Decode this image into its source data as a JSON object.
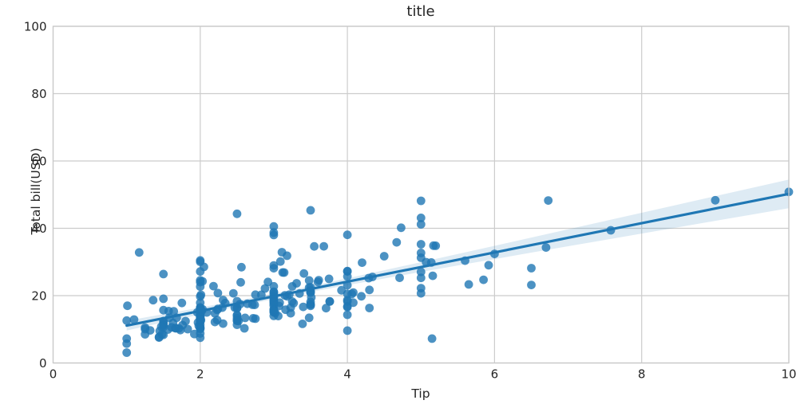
{
  "chart_data": {
    "type": "scatter",
    "title": "title",
    "xlabel": "Tip",
    "ylabel": "Total bill(USD)",
    "xlim": [
      0,
      10
    ],
    "ylim": [
      0,
      100
    ],
    "xticks": [
      0,
      2,
      4,
      6,
      8,
      10
    ],
    "yticks": [
      0,
      20,
      40,
      60,
      80,
      100
    ],
    "grid": true,
    "legend": false,
    "marker_alpha": 0.8,
    "band_alpha": 0.15,
    "colors": {
      "marker": "#1f77b4",
      "line": "#1f77b4",
      "band": "#1f77b4",
      "grid": "#cccccc",
      "spine": "#c9c9c9",
      "text": "#262626"
    },
    "points": [
      [
        1.01,
        16.99
      ],
      [
        1.66,
        10.34
      ],
      [
        3.5,
        21.01
      ],
      [
        3.31,
        23.68
      ],
      [
        3.61,
        24.59
      ],
      [
        4.71,
        25.29
      ],
      [
        2.0,
        8.77
      ],
      [
        3.12,
        26.88
      ],
      [
        1.96,
        15.04
      ],
      [
        3.23,
        14.78
      ],
      [
        1.71,
        10.27
      ],
      [
        5.0,
        35.26
      ],
      [
        1.57,
        15.42
      ],
      [
        3.0,
        18.43
      ],
      [
        3.02,
        14.83
      ],
      [
        3.92,
        21.58
      ],
      [
        1.67,
        10.33
      ],
      [
        3.71,
        16.29
      ],
      [
        3.5,
        16.97
      ],
      [
        3.35,
        20.65
      ],
      [
        4.08,
        17.92
      ],
      [
        2.75,
        20.29
      ],
      [
        2.23,
        15.77
      ],
      [
        7.58,
        39.42
      ],
      [
        3.18,
        19.82
      ],
      [
        2.34,
        17.81
      ],
      [
        2.0,
        13.37
      ],
      [
        2.0,
        12.69
      ],
      [
        4.3,
        21.7
      ],
      [
        3.0,
        19.65
      ],
      [
        1.45,
        9.55
      ],
      [
        2.5,
        18.35
      ],
      [
        3.0,
        15.06
      ],
      [
        2.45,
        20.69
      ],
      [
        3.27,
        17.78
      ],
      [
        3.6,
        24.06
      ],
      [
        2.0,
        16.31
      ],
      [
        3.07,
        16.93
      ],
      [
        2.31,
        18.69
      ],
      [
        5.0,
        31.27
      ],
      [
        2.24,
        16.04
      ],
      [
        2.54,
        17.46
      ],
      [
        3.06,
        13.94
      ],
      [
        1.32,
        9.68
      ],
      [
        5.6,
        30.4
      ],
      [
        3.0,
        18.29
      ],
      [
        5.0,
        22.23
      ],
      [
        6.0,
        32.4
      ],
      [
        2.05,
        28.55
      ],
      [
        3.0,
        18.04
      ],
      [
        2.5,
        12.54
      ],
      [
        2.6,
        10.29
      ],
      [
        5.2,
        34.81
      ],
      [
        1.56,
        9.94
      ],
      [
        4.34,
        25.56
      ],
      [
        3.51,
        19.49
      ],
      [
        3.0,
        38.01
      ],
      [
        1.5,
        26.41
      ],
      [
        1.76,
        11.24
      ],
      [
        6.73,
        48.27
      ],
      [
        3.21,
        20.29
      ],
      [
        2.0,
        13.81
      ],
      [
        1.98,
        11.02
      ],
      [
        3.76,
        18.29
      ],
      [
        2.64,
        17.59
      ],
      [
        3.15,
        20.08
      ],
      [
        2.47,
        16.45
      ],
      [
        1.0,
        3.07
      ],
      [
        2.01,
        20.23
      ],
      [
        2.09,
        15.01
      ],
      [
        1.97,
        12.02
      ],
      [
        3.0,
        17.07
      ],
      [
        3.14,
        26.86
      ],
      [
        5.0,
        25.28
      ],
      [
        2.2,
        14.73
      ],
      [
        1.25,
        10.51
      ],
      [
        3.08,
        17.92
      ],
      [
        4.0,
        27.2
      ],
      [
        3.0,
        22.76
      ],
      [
        2.71,
        17.29
      ],
      [
        3.0,
        19.44
      ],
      [
        3.4,
        16.66
      ],
      [
        1.83,
        10.07
      ],
      [
        5.0,
        32.68
      ],
      [
        2.03,
        15.98
      ],
      [
        5.17,
        34.83
      ],
      [
        2.0,
        13.03
      ],
      [
        4.0,
        18.28
      ],
      [
        5.85,
        24.71
      ],
      [
        3.0,
        21.16
      ],
      [
        3.0,
        28.97
      ],
      [
        3.5,
        22.49
      ],
      [
        1.0,
        5.75
      ],
      [
        4.3,
        16.32
      ],
      [
        3.25,
        22.75
      ],
      [
        4.73,
        40.17
      ],
      [
        4.0,
        27.28
      ],
      [
        1.5,
        12.03
      ],
      [
        3.0,
        21.01
      ],
      [
        1.5,
        12.46
      ],
      [
        2.5,
        11.35
      ],
      [
        3.0,
        15.38
      ],
      [
        2.5,
        44.3
      ],
      [
        3.48,
        22.42
      ],
      [
        4.08,
        20.92
      ],
      [
        1.64,
        15.36
      ],
      [
        4.06,
        20.49
      ],
      [
        4.29,
        25.21
      ],
      [
        3.76,
        18.24
      ],
      [
        4.0,
        14.31
      ],
      [
        3.0,
        14.0
      ],
      [
        1.0,
        7.25
      ],
      [
        4.0,
        38.07
      ],
      [
        2.55,
        23.95
      ],
      [
        4.0,
        25.71
      ],
      [
        3.5,
        17.31
      ],
      [
        5.07,
        29.93
      ],
      [
        1.5,
        10.65
      ],
      [
        1.8,
        12.43
      ],
      [
        2.92,
        24.08
      ],
      [
        2.31,
        11.69
      ],
      [
        1.68,
        13.42
      ],
      [
        2.5,
        14.26
      ],
      [
        2.0,
        15.95
      ],
      [
        2.52,
        12.48
      ],
      [
        4.2,
        29.8
      ],
      [
        1.48,
        8.52
      ],
      [
        2.0,
        14.52
      ],
      [
        2.0,
        11.38
      ],
      [
        2.18,
        22.82
      ],
      [
        1.5,
        19.08
      ],
      [
        2.83,
        20.27
      ],
      [
        1.5,
        11.17
      ],
      [
        2.0,
        12.26
      ],
      [
        3.25,
        18.26
      ],
      [
        1.25,
        8.51
      ],
      [
        2.0,
        10.33
      ],
      [
        2.0,
        14.15
      ],
      [
        2.0,
        16.0
      ],
      [
        2.75,
        13.16
      ],
      [
        3.5,
        17.47
      ],
      [
        6.7,
        34.3
      ],
      [
        5.0,
        41.19
      ],
      [
        5.0,
        27.05
      ],
      [
        2.3,
        16.43
      ],
      [
        1.5,
        8.35
      ],
      [
        1.36,
        18.64
      ],
      [
        1.63,
        11.87
      ],
      [
        1.73,
        9.78
      ],
      [
        2.0,
        7.51
      ],
      [
        2.5,
        14.07
      ],
      [
        2.0,
        13.13
      ],
      [
        2.74,
        17.26
      ],
      [
        2.0,
        24.55
      ],
      [
        2.0,
        19.77
      ],
      [
        5.14,
        29.85
      ],
      [
        5.0,
        48.17
      ],
      [
        3.75,
        25.0
      ],
      [
        2.61,
        13.39
      ],
      [
        2.0,
        16.49
      ],
      [
        3.5,
        21.5
      ],
      [
        2.5,
        12.66
      ],
      [
        2.0,
        16.21
      ],
      [
        2.0,
        13.81
      ],
      [
        3.0,
        17.51
      ],
      [
        3.48,
        24.52
      ],
      [
        2.24,
        20.76
      ],
      [
        4.5,
        31.71
      ],
      [
        1.61,
        10.59
      ],
      [
        2.0,
        10.63
      ],
      [
        10.0,
        50.81
      ],
      [
        3.16,
        15.81
      ],
      [
        5.15,
        7.25
      ],
      [
        3.18,
        31.85
      ],
      [
        4.0,
        16.82
      ],
      [
        3.11,
        32.9
      ],
      [
        2.0,
        17.89
      ],
      [
        2.0,
        14.48
      ],
      [
        4.0,
        9.6
      ],
      [
        3.55,
        34.63
      ],
      [
        3.68,
        34.65
      ],
      [
        5.65,
        23.33
      ],
      [
        3.5,
        45.35
      ],
      [
        6.5,
        23.17
      ],
      [
        3.0,
        40.55
      ],
      [
        5.0,
        20.69
      ],
      [
        3.5,
        20.9
      ],
      [
        2.0,
        30.46
      ],
      [
        3.5,
        18.15
      ],
      [
        4.0,
        23.1
      ],
      [
        1.5,
        15.69
      ],
      [
        4.19,
        19.81
      ],
      [
        2.56,
        28.44
      ],
      [
        2.02,
        15.48
      ],
      [
        4.0,
        16.58
      ],
      [
        1.44,
        7.56
      ],
      [
        2.0,
        10.34
      ],
      [
        5.0,
        43.11
      ],
      [
        2.0,
        13.0
      ],
      [
        2.0,
        13.51
      ],
      [
        4.0,
        18.71
      ],
      [
        2.01,
        12.74
      ],
      [
        2.0,
        13.0
      ],
      [
        2.5,
        16.4
      ],
      [
        4.0,
        20.53
      ],
      [
        3.23,
        16.47
      ],
      [
        3.41,
        26.59
      ],
      [
        3.0,
        38.73
      ],
      [
        2.03,
        24.27
      ],
      [
        2.23,
        12.76
      ],
      [
        2.0,
        30.06
      ],
      [
        5.16,
        25.89
      ],
      [
        9.0,
        48.33
      ],
      [
        2.5,
        13.27
      ],
      [
        6.5,
        28.17
      ],
      [
        1.1,
        12.9
      ],
      [
        3.0,
        28.15
      ],
      [
        1.5,
        11.59
      ],
      [
        1.44,
        7.74
      ],
      [
        3.09,
        30.14
      ],
      [
        2.2,
        12.16
      ],
      [
        3.48,
        13.42
      ],
      [
        1.92,
        8.58
      ],
      [
        3.0,
        15.98
      ],
      [
        1.58,
        13.42
      ],
      [
        2.5,
        16.27
      ],
      [
        2.0,
        10.09
      ],
      [
        3.0,
        20.45
      ],
      [
        2.72,
        13.28
      ],
      [
        2.88,
        22.12
      ],
      [
        2.0,
        24.01
      ],
      [
        3.0,
        15.69
      ],
      [
        3.39,
        11.61
      ],
      [
        1.47,
        10.77
      ],
      [
        3.0,
        15.53
      ],
      [
        1.25,
        10.07
      ],
      [
        1.0,
        12.6
      ],
      [
        1.17,
        32.83
      ],
      [
        4.67,
        35.83
      ],
      [
        5.92,
        29.03
      ],
      [
        2.0,
        27.18
      ],
      [
        2.0,
        22.67
      ],
      [
        1.75,
        17.82
      ],
      [
        3.0,
        18.78
      ]
    ],
    "regression_line": {
      "x": [
        1.0,
        10.0
      ],
      "y": [
        11.1,
        50.22
      ]
    },
    "ci_band": {
      "x": [
        1.0,
        1.5,
        2.0,
        2.5,
        3.0,
        3.5,
        4.0,
        4.5,
        5.0,
        5.5,
        6.0,
        6.5,
        7.0,
        7.5,
        8.0,
        8.5,
        9.0,
        9.5,
        10.0
      ],
      "lower": [
        9.65,
        12.05,
        14.42,
        16.74,
        18.97,
        21.08,
        23.12,
        25.09,
        27.04,
        28.96,
        30.86,
        32.77,
        34.66,
        36.54,
        38.44,
        40.32,
        42.21,
        44.09,
        45.97
      ],
      "upper": [
        12.55,
        14.49,
        16.46,
        18.5,
        20.61,
        22.84,
        25.16,
        27.53,
        29.94,
        32.36,
        34.8,
        37.25,
        39.7,
        42.16,
        44.62,
        47.08,
        49.55,
        52.01,
        54.47
      ]
    }
  }
}
